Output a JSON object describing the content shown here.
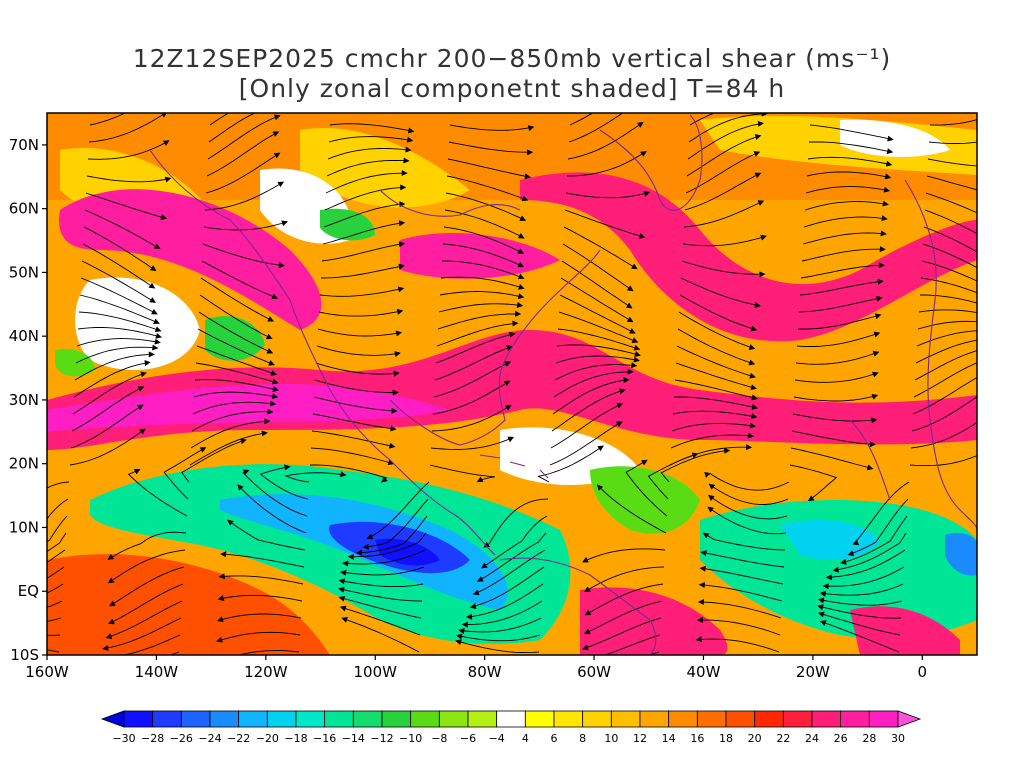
{
  "title": {
    "line1": "12Z12SEP2025 cmchr 200−850mb vertical shear (ms⁻¹)",
    "line2": "[Only zonal componetnt shaded] T=84 h"
  },
  "map": {
    "lat_range": [
      -10,
      75
    ],
    "lon_range": [
      -160,
      10
    ],
    "lat_ticks": [
      {
        "label": "70N",
        "lat": 70
      },
      {
        "label": "60N",
        "lat": 60
      },
      {
        "label": "50N",
        "lat": 50
      },
      {
        "label": "40N",
        "lat": 40
      },
      {
        "label": "30N",
        "lat": 30
      },
      {
        "label": "20N",
        "lat": 20
      },
      {
        "label": "10N",
        "lat": 10
      },
      {
        "label": "EQ",
        "lat": 0
      },
      {
        "label": "10S",
        "lat": -10
      }
    ],
    "lon_ticks": [
      {
        "label": "160W",
        "lon": -160
      },
      {
        "label": "140W",
        "lon": -140
      },
      {
        "label": "120W",
        "lon": -120
      },
      {
        "label": "100W",
        "lon": -100
      },
      {
        "label": "80W",
        "lon": -80
      },
      {
        "label": "60W",
        "lon": -60
      },
      {
        "label": "40W",
        "lon": -40
      },
      {
        "label": "20W",
        "lon": -20
      },
      {
        "label": "0",
        "lon": 0
      }
    ],
    "layers": [
      "shaded zonal shear",
      "shear streamlines",
      "coastlines"
    ]
  },
  "colorbar": {
    "labels": [
      "−30",
      "−28",
      "−26",
      "−24",
      "−22",
      "−20",
      "−18",
      "−16",
      "−14",
      "−12",
      "−10",
      "−8",
      "−6",
      "−4",
      "4",
      "6",
      "8",
      "10",
      "12",
      "14",
      "16",
      "18",
      "20",
      "22",
      "24",
      "26",
      "28",
      "30"
    ],
    "colors": [
      "#1010ff",
      "#1e3cff",
      "#1e64ff",
      "#1a8cff",
      "#10b4ff",
      "#00d2f0",
      "#00e6c8",
      "#00e696",
      "#14dc6e",
      "#28d23c",
      "#5adc14",
      "#8ce614",
      "#b4f014",
      "#ffffff",
      "#ffff00",
      "#ffe600",
      "#ffd200",
      "#ffbe00",
      "#ffa500",
      "#ff8c00",
      "#ff6e00",
      "#ff5000",
      "#ff2800",
      "#ff1e3c",
      "#ff1e78",
      "#ff1ea0",
      "#ff1ec3"
    ],
    "under_color": "#0000e0",
    "over_color": "#ff50dc"
  }
}
